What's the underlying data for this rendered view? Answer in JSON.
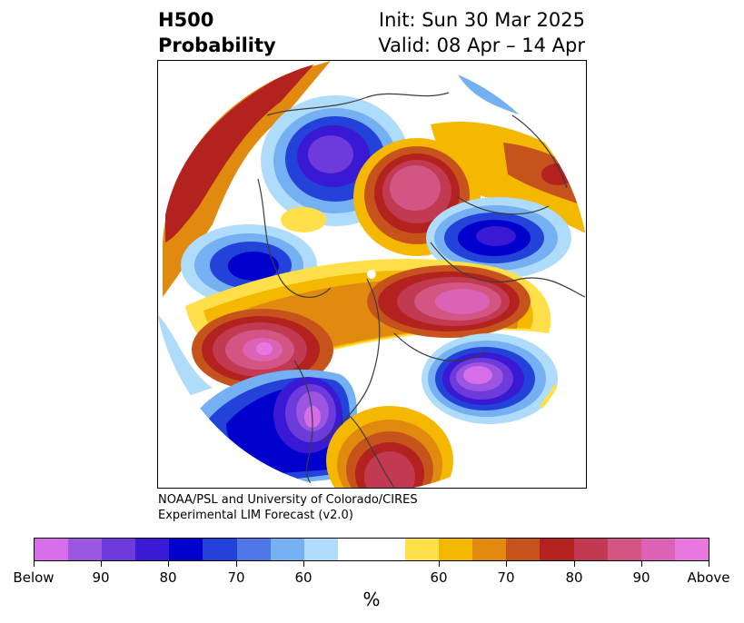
{
  "header": {
    "title_line1": "H500",
    "title_line2": "Probability",
    "init": "Init: Sun 30 Mar 2025",
    "valid": "Valid: 08 Apr – 14 Apr"
  },
  "credit": {
    "line1": "NOAA/PSL and University of Colorado/CIRES",
    "line2": "Experimental LIM Forecast (v2.0)"
  },
  "colorbar": {
    "colors": [
      "#d56ee8",
      "#9b55e0",
      "#6d3adb",
      "#3a19d4",
      "#0000cc",
      "#2342d9",
      "#4f77e8",
      "#74b0f2",
      "#aedcfa",
      "#ffffff",
      "#ffe04a",
      "#f4b800",
      "#e08a10",
      "#c6531c",
      "#b3221f",
      "#c23a52",
      "#d25583",
      "#dc62b6",
      "#e878df"
    ],
    "tick_labels": [
      "Below",
      "90",
      "80",
      "70",
      "60",
      "60",
      "70",
      "80",
      "90",
      "Above"
    ],
    "unit": "%"
  }
}
